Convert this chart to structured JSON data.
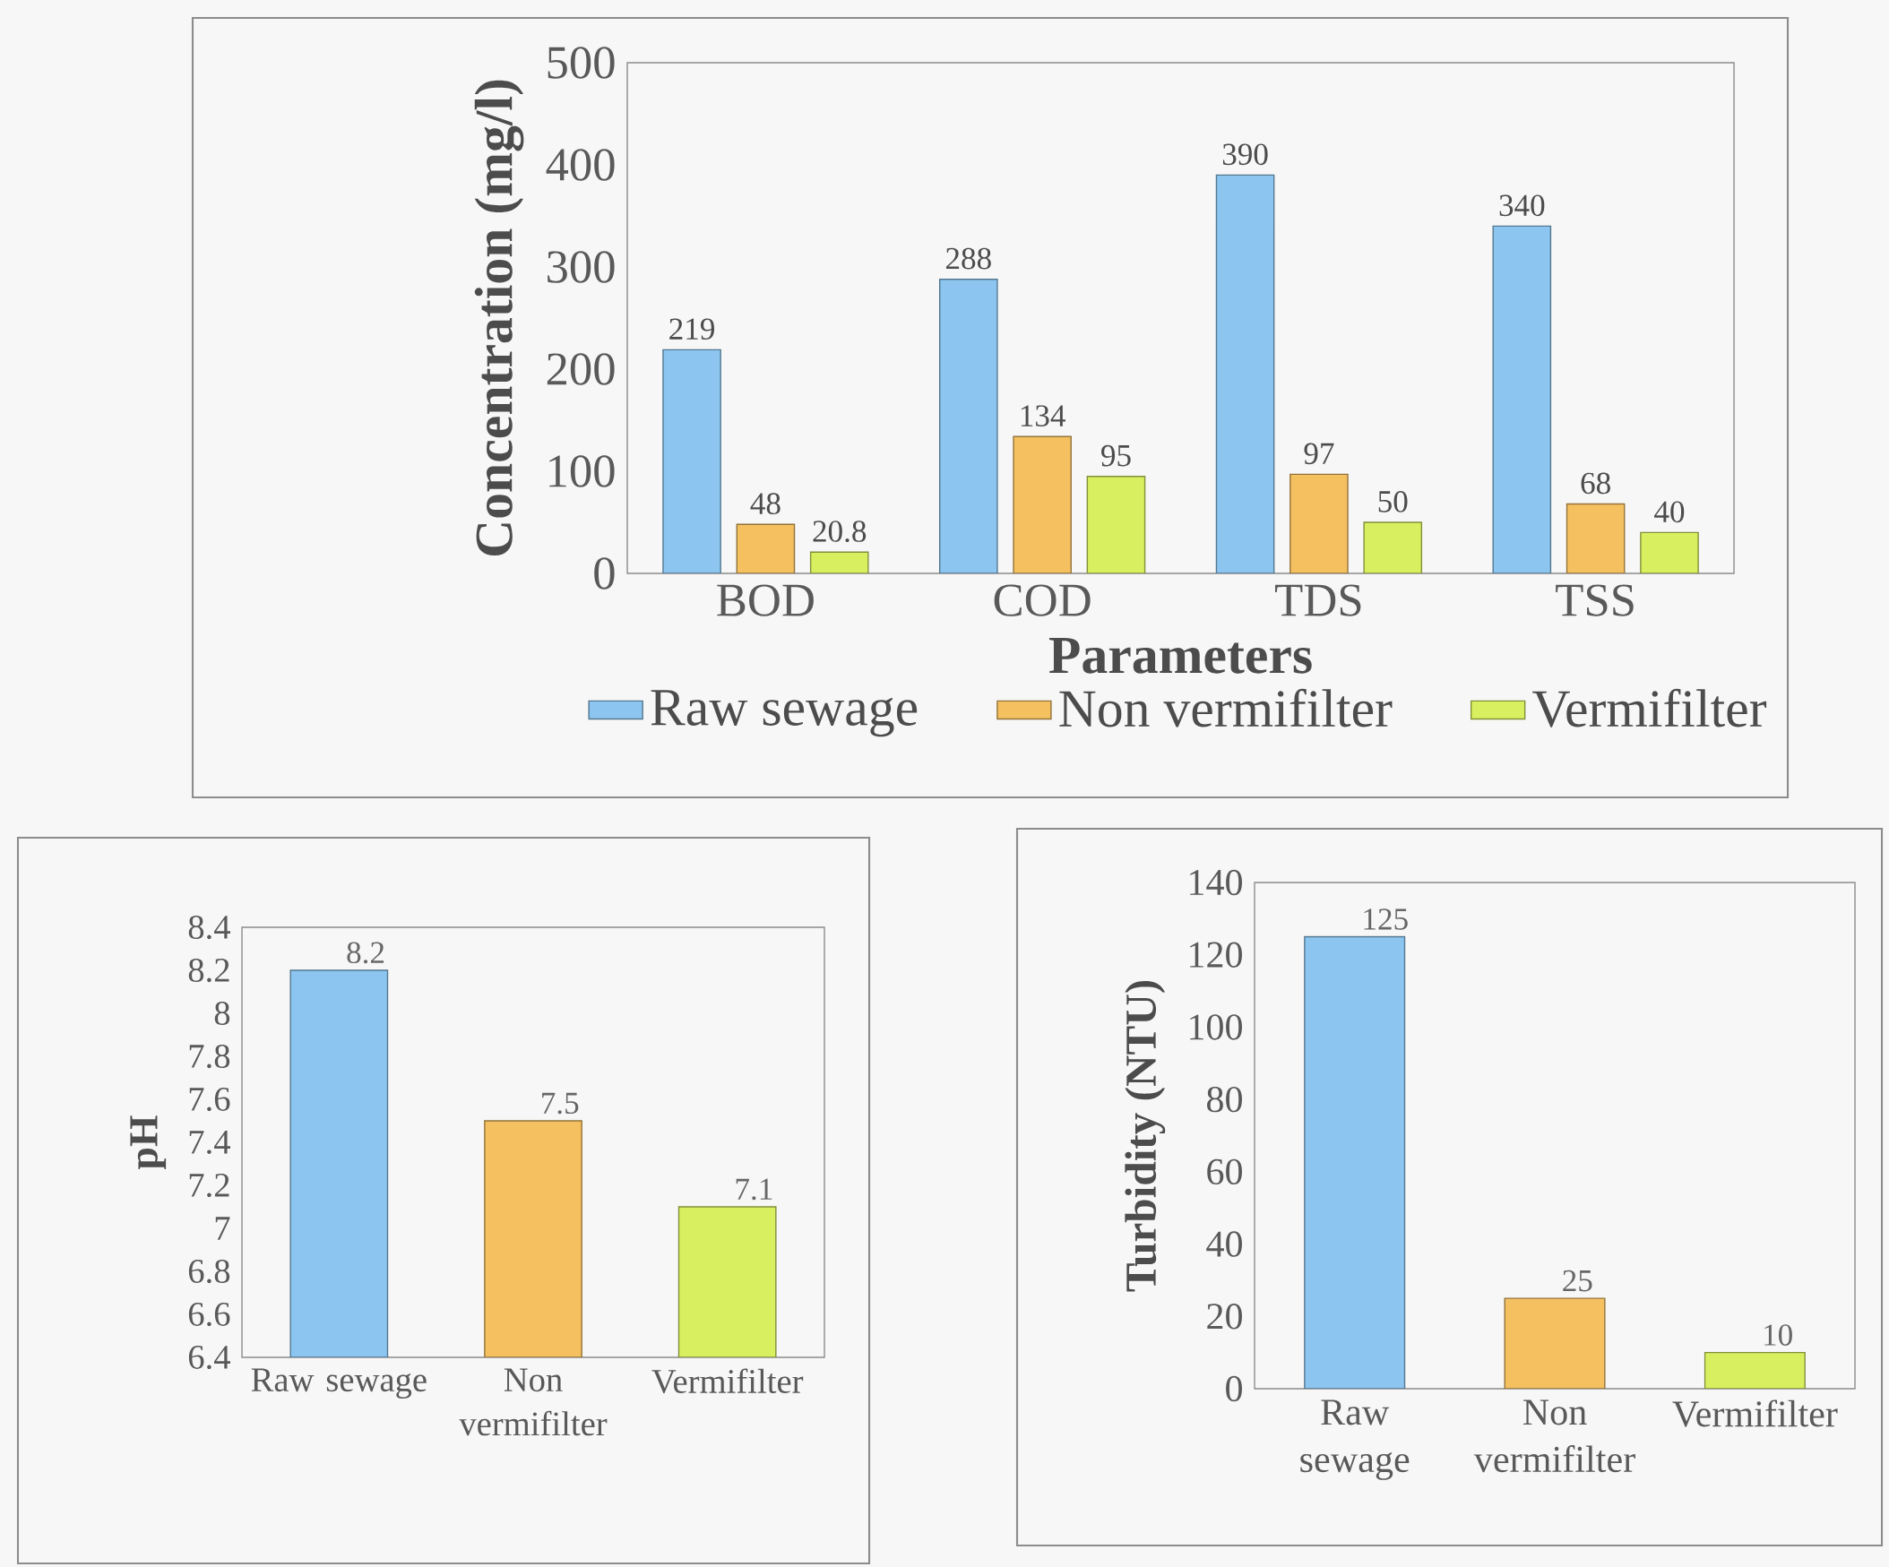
{
  "chart_data": [
    {
      "type": "bar",
      "categories": [
        "BOD",
        "COD",
        "TDS",
        "TSS"
      ],
      "xlabel": "Parameters",
      "ylabel": "Concentration (mg/l)",
      "ylim": [
        0,
        500
      ],
      "yticks": [
        0,
        100,
        200,
        300,
        400,
        500
      ],
      "data_labels": true,
      "legend": "bottom",
      "series": [
        {
          "name": "Raw sewage",
          "color": "#8cc6f0",
          "values": [
            219,
            288,
            390,
            340
          ]
        },
        {
          "name": "Non vermifilter",
          "color": "#f5c060",
          "values": [
            48,
            134,
            97,
            68
          ]
        },
        {
          "name": "Vermifilter",
          "color": "#d8f060",
          "values": [
            20.8,
            95,
            50,
            40
          ]
        }
      ]
    },
    {
      "type": "bar",
      "categories": [
        "Raw sewage",
        "Non vermifilter",
        "Vermifilter"
      ],
      "ylabel": "pH",
      "ylim": [
        6.4,
        8.4
      ],
      "yticks": [
        6.4,
        6.6,
        6.8,
        7,
        7.2,
        7.4,
        7.6,
        7.8,
        8,
        8.2,
        8.4
      ],
      "data_labels": true,
      "values": [
        8.2,
        7.5,
        7.1
      ],
      "colors": [
        "#8cc6f0",
        "#f5c060",
        "#d8f060"
      ]
    },
    {
      "type": "bar",
      "categories": [
        "Raw sewage",
        "Non vermifilter",
        "Vermifilter"
      ],
      "ylabel": "Turbidity (NTU)",
      "ylim": [
        0,
        140
      ],
      "yticks": [
        0,
        20,
        40,
        60,
        80,
        100,
        120,
        140
      ],
      "data_labels": true,
      "values": [
        125,
        25,
        10
      ],
      "colors": [
        "#8cc6f0",
        "#f5c060",
        "#d8f060"
      ]
    }
  ]
}
